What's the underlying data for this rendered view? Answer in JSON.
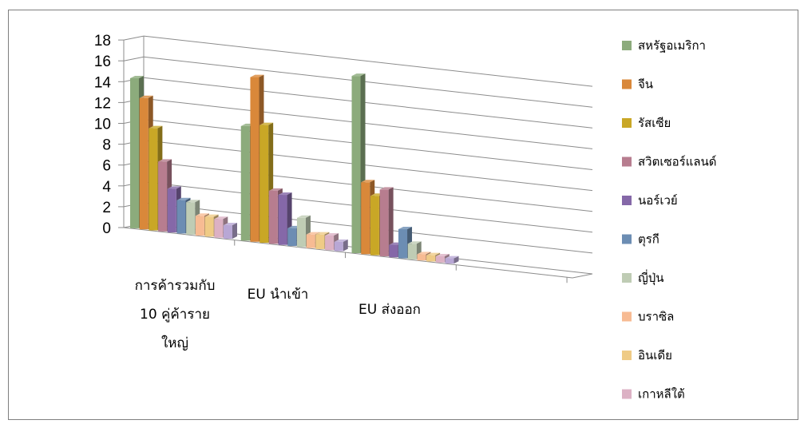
{
  "chart_data": {
    "type": "bar",
    "ylim": [
      0,
      18
    ],
    "yticks": [
      0,
      2,
      4,
      6,
      8,
      10,
      12,
      14,
      16,
      18
    ],
    "grid": true,
    "legend_position": "right",
    "categories": [
      {
        "lines": [
          "การค้ารวมกับ",
          "10 คู่ค้าราย",
          "ใหญ่"
        ]
      },
      {
        "lines": [
          "EU นำเข้า"
        ]
      },
      {
        "lines": [
          "EU ส่งออก"
        ]
      }
    ],
    "series": [
      {
        "name": "สหรัฐอเมริกา",
        "color": "#8CAB7C",
        "values": [
          14.4,
          11.0,
          17.0
        ]
      },
      {
        "name": "จีน",
        "color": "#D9883A",
        "values": [
          12.6,
          15.8,
          6.9
        ]
      },
      {
        "name": "รัสเซีย",
        "color": "#C9A726",
        "values": [
          9.8,
          11.3,
          5.7
        ]
      },
      {
        "name": "สวิตเซอร์แลนด์",
        "color": "#B77D8F",
        "values": [
          6.7,
          5.1,
          6.4
        ]
      },
      {
        "name": "นอร์เวย์",
        "color": "#8568A8",
        "values": [
          4.2,
          4.8,
          1.2
        ]
      },
      {
        "name": "ตุรกี",
        "color": "#6C8DB3",
        "values": [
          3.2,
          1.7,
          2.8
        ]
      },
      {
        "name": "ญี่ปุ่น",
        "color": "#BFCCB4",
        "values": [
          3.1,
          2.8,
          1.5
        ]
      },
      {
        "name": "บราซิล",
        "color": "#F7BB93",
        "values": [
          1.9,
          1.3,
          0.6
        ]
      },
      {
        "name": "อินเดีย",
        "color": "#EFCB86",
        "values": [
          1.9,
          1.4,
          0.6
        ]
      },
      {
        "name": "เกาหลีใต้",
        "color": "#DCB1C4",
        "values": [
          1.8,
          1.4,
          0.6
        ]
      },
      {
        "name": "",
        "color": "#B8A7D5",
        "values": [
          1.3,
          0.9,
          0.5
        ]
      }
    ]
  }
}
